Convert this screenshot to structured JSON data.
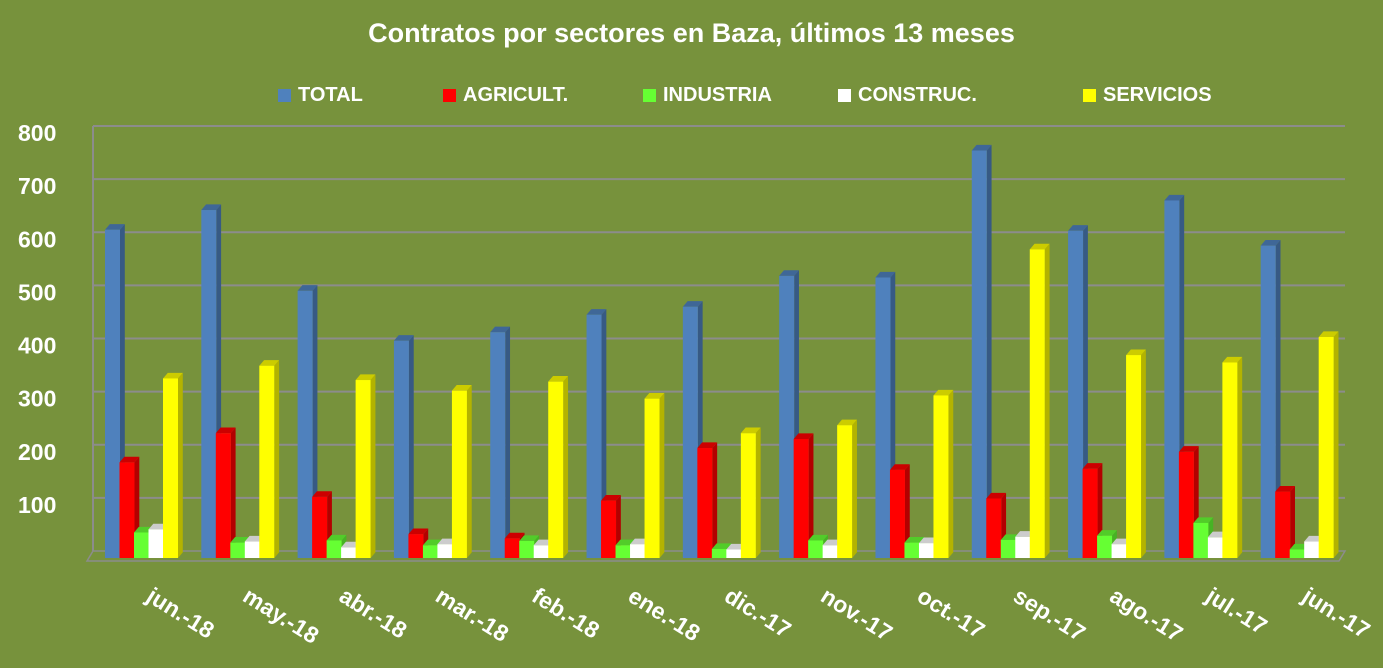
{
  "chart_data": {
    "type": "bar",
    "title": "Contratos por sectores en Baza, últimos 13 meses",
    "xlabel": "",
    "ylabel": "",
    "ylim": [
      0,
      800
    ],
    "yticks": [
      "100",
      "200",
      "300",
      "400",
      "500",
      "600",
      "700",
      "800"
    ],
    "grid": true,
    "legend_position": "top",
    "categories": [
      "jun.-18",
      "may.-18",
      "abr.-18",
      "mar.-18",
      "feb.-18",
      "ene.-18",
      "dic.-17",
      "nov.-17",
      "oct.-17",
      "sep.-17",
      "ago.-17",
      "jul.-17",
      "jun.-17"
    ],
    "series": [
      {
        "name": "TOTAL",
        "color": "#4f81bd",
        "values": [
          618,
          655,
          503,
          409,
          425,
          458,
          473,
          531,
          528,
          767,
          616,
          673,
          588
        ]
      },
      {
        "name": "AGRICULT.",
        "color": "#ff0000",
        "values": [
          180,
          235,
          115,
          45,
          37,
          108,
          207,
          224,
          166,
          112,
          168,
          200,
          125
        ]
      },
      {
        "name": "INDUSTRIA",
        "color": "#66ff33",
        "values": [
          48,
          29,
          33,
          24,
          32,
          24,
          17,
          33,
          29,
          34,
          42,
          66,
          16
        ]
      },
      {
        "name": "CONSTRUC.",
        "color": "#ffffff",
        "values": [
          54,
          31,
          20,
          26,
          24,
          26,
          16,
          24,
          28,
          40,
          26,
          39,
          31
        ]
      },
      {
        "name": "SERVICIOS",
        "color": "#ffff00",
        "values": [
          338,
          362,
          335,
          315,
          332,
          300,
          235,
          250,
          306,
          581,
          382,
          368,
          416
        ]
      }
    ]
  }
}
